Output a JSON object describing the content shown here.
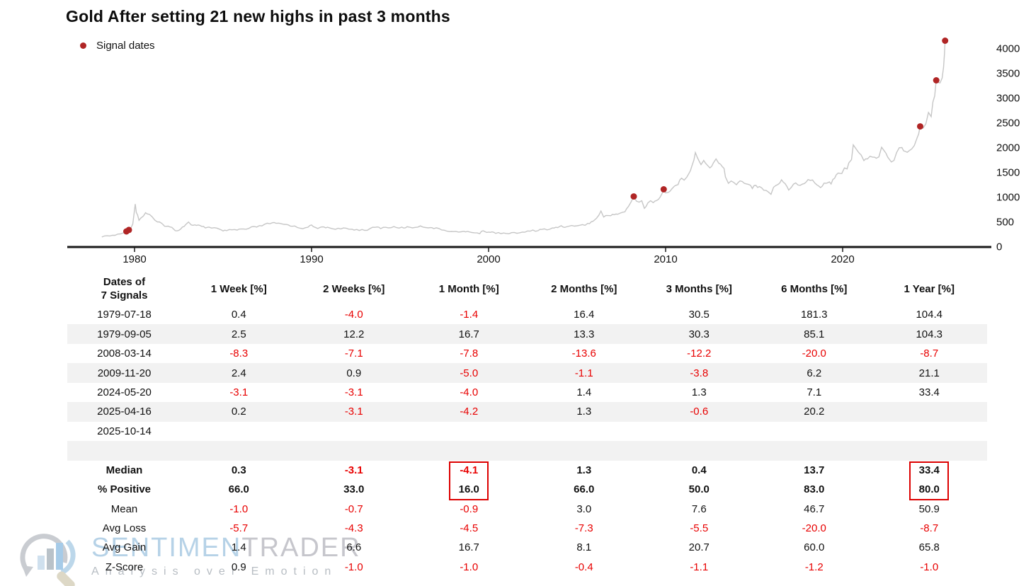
{
  "header": {
    "title": "Gold After setting 21 new highs in past 3 months",
    "legend_label": "Signal dates"
  },
  "colors": {
    "negative_text": "#e80000",
    "signal_dot": "#b02525",
    "price_line": "#c6c6c6",
    "axis": "#1a1a1a",
    "row_stripe": "#f2f2f2",
    "highlight_box": "#dd0000"
  },
  "chart_data": {
    "type": "line",
    "title": "Gold After setting 21 new highs in past 3 months",
    "xlabel": "",
    "ylabel": "",
    "x_ticks": [
      1980,
      1990,
      2000,
      2010,
      2020
    ],
    "y_ticks": [
      0,
      500,
      1000,
      1500,
      2000,
      2500,
      3000,
      3500,
      4000
    ],
    "xlim": [
      1977.8,
      2026.2
    ],
    "ylim": [
      0,
      4300
    ],
    "grid": false,
    "legend_position": "top-left",
    "series": [
      {
        "name": "Gold price",
        "points": [
          [
            1978.15,
            200
          ],
          [
            1978.3,
            195
          ],
          [
            1978.45,
            215
          ],
          [
            1978.6,
            205
          ],
          [
            1978.75,
            220
          ],
          [
            1978.9,
            225
          ],
          [
            1979.05,
            235
          ],
          [
            1979.2,
            245
          ],
          [
            1979.35,
            270
          ],
          [
            1979.54,
            300
          ],
          [
            1979.68,
            330
          ],
          [
            1979.8,
            390
          ],
          [
            1979.9,
            460
          ],
          [
            1980.04,
            850
          ],
          [
            1980.1,
            700
          ],
          [
            1980.17,
            630
          ],
          [
            1980.25,
            530
          ],
          [
            1980.35,
            560
          ],
          [
            1980.5,
            620
          ],
          [
            1980.62,
            680
          ],
          [
            1980.72,
            660
          ],
          [
            1980.85,
            640
          ],
          [
            1981.0,
            580
          ],
          [
            1981.15,
            520
          ],
          [
            1981.3,
            490
          ],
          [
            1981.5,
            460
          ],
          [
            1981.7,
            420
          ],
          [
            1981.9,
            400
          ],
          [
            1982.1,
            375
          ],
          [
            1982.3,
            330
          ],
          [
            1982.5,
            320
          ],
          [
            1982.7,
            390
          ],
          [
            1982.9,
            440
          ],
          [
            1983.05,
            480
          ],
          [
            1983.2,
            440
          ],
          [
            1983.4,
            425
          ],
          [
            1983.6,
            420
          ],
          [
            1983.8,
            395
          ],
          [
            1984.0,
            380
          ],
          [
            1984.2,
            385
          ],
          [
            1984.5,
            375
          ],
          [
            1984.8,
            340
          ],
          [
            1985.0,
            300
          ],
          [
            1985.2,
            325
          ],
          [
            1985.5,
            320
          ],
          [
            1985.8,
            330
          ],
          [
            1986.0,
            345
          ],
          [
            1986.3,
            340
          ],
          [
            1986.6,
            380
          ],
          [
            1986.9,
            390
          ],
          [
            1987.2,
            420
          ],
          [
            1987.5,
            450
          ],
          [
            1987.8,
            475
          ],
          [
            1988.0,
            455
          ],
          [
            1988.3,
            450
          ],
          [
            1988.6,
            435
          ],
          [
            1988.9,
            415
          ],
          [
            1989.2,
            380
          ],
          [
            1989.5,
            365
          ],
          [
            1989.8,
            400
          ],
          [
            1990.0,
            415
          ],
          [
            1990.2,
            375
          ],
          [
            1990.5,
            370
          ],
          [
            1990.7,
            390
          ],
          [
            1990.9,
            380
          ],
          [
            1991.2,
            360
          ],
          [
            1991.5,
            355
          ],
          [
            1991.8,
            355
          ],
          [
            1992.1,
            345
          ],
          [
            1992.4,
            340
          ],
          [
            1992.7,
            335
          ],
          [
            1993.0,
            330
          ],
          [
            1993.3,
            345
          ],
          [
            1993.6,
            390
          ],
          [
            1993.9,
            370
          ],
          [
            1994.2,
            380
          ],
          [
            1994.5,
            385
          ],
          [
            1994.8,
            380
          ],
          [
            1995.1,
            375
          ],
          [
            1995.4,
            385
          ],
          [
            1995.7,
            380
          ],
          [
            1996.0,
            400
          ],
          [
            1996.3,
            395
          ],
          [
            1996.6,
            385
          ],
          [
            1996.9,
            370
          ],
          [
            1997.2,
            345
          ],
          [
            1997.5,
            325
          ],
          [
            1997.8,
            310
          ],
          [
            1998.0,
            290
          ],
          [
            1998.3,
            300
          ],
          [
            1998.6,
            290
          ],
          [
            1998.9,
            290
          ],
          [
            1999.2,
            280
          ],
          [
            1999.5,
            260
          ],
          [
            1999.7,
            320
          ],
          [
            1999.9,
            290
          ],
          [
            2000.1,
            285
          ],
          [
            2000.4,
            275
          ],
          [
            2000.7,
            270
          ],
          [
            2001.0,
            265
          ],
          [
            2001.3,
            260
          ],
          [
            2001.6,
            275
          ],
          [
            2001.9,
            275
          ],
          [
            2002.2,
            300
          ],
          [
            2002.5,
            315
          ],
          [
            2002.8,
            320
          ],
          [
            2003.0,
            350
          ],
          [
            2003.3,
            330
          ],
          [
            2003.6,
            360
          ],
          [
            2003.9,
            390
          ],
          [
            2004.1,
            410
          ],
          [
            2004.4,
            390
          ],
          [
            2004.7,
            410
          ],
          [
            2005.0,
            425
          ],
          [
            2005.3,
            430
          ],
          [
            2005.6,
            450
          ],
          [
            2005.9,
            510
          ],
          [
            2006.1,
            560
          ],
          [
            2006.35,
            710
          ],
          [
            2006.5,
            590
          ],
          [
            2006.75,
            620
          ],
          [
            2006.9,
            630
          ],
          [
            2007.1,
            650
          ],
          [
            2007.4,
            660
          ],
          [
            2007.7,
            700
          ],
          [
            2007.9,
            800
          ],
          [
            2008.05,
            900
          ],
          [
            2008.2,
            1005
          ],
          [
            2008.35,
            920
          ],
          [
            2008.5,
            900
          ],
          [
            2008.65,
            920
          ],
          [
            2008.8,
            750
          ],
          [
            2008.9,
            800
          ],
          [
            2009.0,
            870
          ],
          [
            2009.15,
            930
          ],
          [
            2009.3,
            900
          ],
          [
            2009.5,
            930
          ],
          [
            2009.7,
            990
          ],
          [
            2009.89,
            1150
          ],
          [
            2010.0,
            1100
          ],
          [
            2010.15,
            1110
          ],
          [
            2010.35,
            1150
          ],
          [
            2010.5,
            1200
          ],
          [
            2010.7,
            1250
          ],
          [
            2010.9,
            1380
          ],
          [
            2011.05,
            1360
          ],
          [
            2011.2,
            1420
          ],
          [
            2011.4,
            1500
          ],
          [
            2011.6,
            1750
          ],
          [
            2011.68,
            1900
          ],
          [
            2011.8,
            1780
          ],
          [
            2011.9,
            1700
          ],
          [
            2012.0,
            1650
          ],
          [
            2012.15,
            1720
          ],
          [
            2012.35,
            1640
          ],
          [
            2012.5,
            1580
          ],
          [
            2012.7,
            1680
          ],
          [
            2012.85,
            1750
          ],
          [
            2013.0,
            1670
          ],
          [
            2013.2,
            1600
          ],
          [
            2013.3,
            1560
          ],
          [
            2013.38,
            1390
          ],
          [
            2013.55,
            1290
          ],
          [
            2013.7,
            1320
          ],
          [
            2013.85,
            1280
          ],
          [
            2014.0,
            1230
          ],
          [
            2014.2,
            1330
          ],
          [
            2014.45,
            1290
          ],
          [
            2014.7,
            1250
          ],
          [
            2014.9,
            1190
          ],
          [
            2015.1,
            1220
          ],
          [
            2015.3,
            1190
          ],
          [
            2015.55,
            1150
          ],
          [
            2015.8,
            1100
          ],
          [
            2015.95,
            1060
          ],
          [
            2016.1,
            1180
          ],
          [
            2016.35,
            1260
          ],
          [
            2016.55,
            1340
          ],
          [
            2016.75,
            1260
          ],
          [
            2016.95,
            1140
          ],
          [
            2017.1,
            1210
          ],
          [
            2017.35,
            1260
          ],
          [
            2017.6,
            1250
          ],
          [
            2017.85,
            1290
          ],
          [
            2018.05,
            1340
          ],
          [
            2018.3,
            1330
          ],
          [
            2018.55,
            1250
          ],
          [
            2018.75,
            1200
          ],
          [
            2018.95,
            1270
          ],
          [
            2019.15,
            1300
          ],
          [
            2019.35,
            1280
          ],
          [
            2019.55,
            1400
          ],
          [
            2019.75,
            1500
          ],
          [
            2019.95,
            1480
          ],
          [
            2020.1,
            1570
          ],
          [
            2020.25,
            1580
          ],
          [
            2020.35,
            1680
          ],
          [
            2020.5,
            1750
          ],
          [
            2020.6,
            2050
          ],
          [
            2020.75,
            1950
          ],
          [
            2020.9,
            1880
          ],
          [
            2021.05,
            1850
          ],
          [
            2021.2,
            1740
          ],
          [
            2021.4,
            1780
          ],
          [
            2021.55,
            1810
          ],
          [
            2021.7,
            1790
          ],
          [
            2021.9,
            1800
          ],
          [
            2022.05,
            1820
          ],
          [
            2022.2,
            1980
          ],
          [
            2022.35,
            1920
          ],
          [
            2022.55,
            1820
          ],
          [
            2022.75,
            1680
          ],
          [
            2022.9,
            1750
          ],
          [
            2023.05,
            1870
          ],
          [
            2023.2,
            1990
          ],
          [
            2023.35,
            1970
          ],
          [
            2023.55,
            1930
          ],
          [
            2023.75,
            1920
          ],
          [
            2023.9,
            1990
          ],
          [
            2024.05,
            2040
          ],
          [
            2024.2,
            2170
          ],
          [
            2024.38,
            2420
          ],
          [
            2024.55,
            2380
          ],
          [
            2024.7,
            2500
          ],
          [
            2024.85,
            2700
          ],
          [
            2025.0,
            2650
          ],
          [
            2025.1,
            2880
          ],
          [
            2025.2,
            3000
          ],
          [
            2025.29,
            3350
          ],
          [
            2025.38,
            3280
          ],
          [
            2025.5,
            3320
          ],
          [
            2025.62,
            3380
          ],
          [
            2025.7,
            3650
          ],
          [
            2025.75,
            3900
          ],
          [
            2025.79,
            4150
          ]
        ]
      }
    ],
    "signals": [
      {
        "date": "1979-07-18",
        "x": 1979.54,
        "y": 300
      },
      {
        "date": "1979-09-05",
        "x": 1979.68,
        "y": 330
      },
      {
        "date": "2008-03-14",
        "x": 2008.2,
        "y": 1005
      },
      {
        "date": "2009-11-20",
        "x": 2009.89,
        "y": 1150
      },
      {
        "date": "2024-05-20",
        "x": 2024.38,
        "y": 2420
      },
      {
        "date": "2025-04-16",
        "x": 2025.29,
        "y": 3350
      },
      {
        "date": "2025-10-14",
        "x": 2025.79,
        "y": 4150
      }
    ]
  },
  "table": {
    "date_header_line1": "Dates of",
    "date_header_line2": "7 Signals",
    "period_headers": [
      "1 Week [%]",
      "2 Weeks [%]",
      "1 Month [%]",
      "2 Months [%]",
      "3 Months [%]",
      "6 Months [%]",
      "1 Year [%]"
    ],
    "rows": [
      {
        "date": "1979-07-18",
        "values": [
          "0.4",
          "-4.0",
          "-1.4",
          "16.4",
          "30.5",
          "181.3",
          "104.4"
        ]
      },
      {
        "date": "1979-09-05",
        "values": [
          "2.5",
          "12.2",
          "16.7",
          "13.3",
          "30.3",
          "85.1",
          "104.3"
        ]
      },
      {
        "date": "2008-03-14",
        "values": [
          "-8.3",
          "-7.1",
          "-7.8",
          "-13.6",
          "-12.2",
          "-20.0",
          "-8.7"
        ]
      },
      {
        "date": "2009-11-20",
        "values": [
          "2.4",
          "0.9",
          "-5.0",
          "-1.1",
          "-3.8",
          "6.2",
          "21.1"
        ]
      },
      {
        "date": "2024-05-20",
        "values": [
          "-3.1",
          "-3.1",
          "-4.0",
          "1.4",
          "1.3",
          "7.1",
          "33.4"
        ]
      },
      {
        "date": "2025-04-16",
        "values": [
          "0.2",
          "-3.1",
          "-4.2",
          "1.3",
          "-0.6",
          "20.2",
          ""
        ]
      },
      {
        "date": "2025-10-14",
        "values": [
          "",
          "",
          "",
          "",
          "",
          "",
          ""
        ]
      },
      {
        "date": "",
        "values": [
          "",
          "",
          "",
          "",
          "",
          "",
          ""
        ]
      }
    ],
    "summary": [
      {
        "label": "Median",
        "bold": true,
        "values": [
          "0.3",
          "-3.1",
          "-4.1",
          "1.3",
          "0.4",
          "13.7",
          "33.4"
        ]
      },
      {
        "label": "% Positive",
        "bold": true,
        "values": [
          "66.0",
          "33.0",
          "16.0",
          "66.0",
          "50.0",
          "83.0",
          "80.0"
        ]
      },
      {
        "label": "Mean",
        "bold": false,
        "values": [
          "-1.0",
          "-0.7",
          "-0.9",
          "3.0",
          "7.6",
          "46.7",
          "50.9"
        ]
      },
      {
        "label": "Avg Loss",
        "bold": false,
        "values": [
          "-5.7",
          "-4.3",
          "-4.5",
          "-7.3",
          "-5.5",
          "-20.0",
          "-8.7"
        ]
      },
      {
        "label": "Avg Gain",
        "bold": false,
        "values": [
          "1.4",
          "6.6",
          "16.7",
          "8.1",
          "20.7",
          "60.0",
          "65.8"
        ]
      },
      {
        "label": "Z-Score",
        "bold": false,
        "values": [
          "0.9",
          "-1.0",
          "-1.0",
          "-0.4",
          "-1.1",
          "-1.2",
          "-1.0"
        ]
      }
    ],
    "highlighted_periods": [
      "1 Month [%]",
      "1 Year [%]"
    ]
  },
  "watermark": {
    "brand_part1": "SENTIMEN",
    "brand_part2": "TRADER",
    "tagline": "Analysis over Emotion"
  }
}
